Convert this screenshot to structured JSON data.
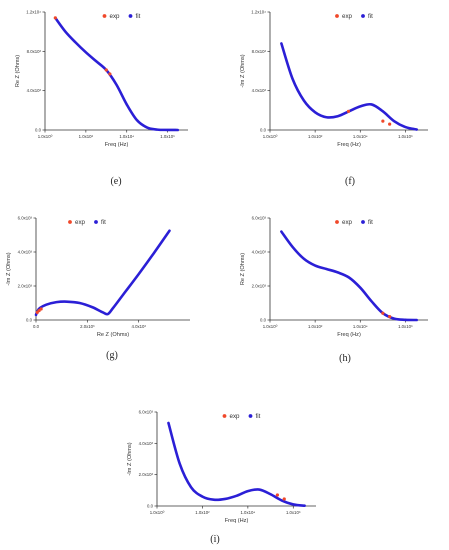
{
  "colors": {
    "exp": "#f0482a",
    "fit": "#2b1fd6",
    "axis": "#333333"
  },
  "chart_data": [
    {
      "id": "e",
      "caption": "(e)",
      "type": "line",
      "title": "",
      "xlabel": "Freq (Hz)",
      "ylabel": "Re Z (Ohms)",
      "xscale": "log",
      "xlim": [
        1,
        10000000
      ],
      "ylim": [
        0,
        12000
      ],
      "xticks": [
        "1.0x10⁰",
        "1.0x10²",
        "1.0x10⁴",
        "1.0x10⁶"
      ],
      "xtick_values": [
        1,
        100,
        10000,
        1000000
      ],
      "yticks": [
        "0.0",
        "4.0x10³",
        "8.0x10³",
        "1.2x10⁴"
      ],
      "ytick_values": [
        0,
        4000,
        8000,
        12000
      ],
      "legend": {
        "position": "top-center",
        "entries": [
          "exp",
          "fit"
        ]
      },
      "series": [
        {
          "name": "fit",
          "x": [
            3.2,
            10,
            31.6,
            100,
            316,
            1000,
            3160,
            10000,
            31600,
            100000,
            316000,
            1000000,
            3160000
          ],
          "y": [
            11400,
            10000,
            8900,
            7900,
            7000,
            6100,
            4600,
            2600,
            1000,
            250,
            40,
            10,
            0
          ]
        },
        {
          "name": "exp",
          "x": [
            3.2,
            1000,
            1500
          ],
          "y": [
            11400,
            6100,
            5700
          ]
        }
      ]
    },
    {
      "id": "f",
      "caption": "(f)",
      "type": "line",
      "title": "",
      "xlabel": "Freq (Hz)",
      "ylabel": "-Im Z (Ohms)",
      "xscale": "log",
      "xlim": [
        1,
        10000000
      ],
      "ylim": [
        0,
        12000
      ],
      "xticks": [
        "1.0x10⁰",
        "1.0x10²",
        "1.0x10⁴",
        "1.0x10⁶"
      ],
      "xtick_values": [
        1,
        100,
        10000,
        1000000
      ],
      "yticks": [
        "0.0",
        "4.0x10³",
        "8.0x10³",
        "1.2x10⁴"
      ],
      "ytick_values": [
        0,
        4000,
        8000,
        12000
      ],
      "legend": {
        "position": "top-center",
        "entries": [
          "exp",
          "fit"
        ]
      },
      "series": [
        {
          "name": "fit",
          "x": [
            3.2,
            10,
            31.6,
            100,
            316,
            1000,
            3160,
            10000,
            31600,
            100000,
            316000,
            1000000,
            3160000
          ],
          "y": [
            8800,
            5200,
            3000,
            1800,
            1300,
            1400,
            1900,
            2400,
            2600,
            1900,
            900,
            300,
            50
          ]
        },
        {
          "name": "exp",
          "x": [
            3000,
            100000,
            200000
          ],
          "y": [
            1900,
            900,
            600
          ]
        }
      ]
    },
    {
      "id": "g",
      "caption": "(g)",
      "type": "line",
      "title": "",
      "xlabel": "Re Z (Ohms)",
      "ylabel": "-Im Z (Ohms)",
      "xscale": "linear",
      "xlim": [
        0,
        6000
      ],
      "ylim": [
        0,
        6000
      ],
      "xticks": [
        "0.0",
        "2.0x10³",
        "4.0x10³"
      ],
      "xtick_values": [
        0,
        2000,
        4000
      ],
      "yticks": [
        "0.0",
        "2.0x10³",
        "4.0x10³",
        "6.0x10³"
      ],
      "ytick_values": [
        0,
        2000,
        4000,
        6000
      ],
      "legend": {
        "position": "top-left",
        "entries": [
          "exp",
          "fit"
        ]
      },
      "series": [
        {
          "name": "fit",
          "x": [
            0,
            50,
            150,
            400,
            800,
            1200,
            1700,
            2200,
            2600,
            2800,
            3000,
            3400,
            4000,
            4600,
            5200
          ],
          "y": [
            300,
            500,
            700,
            900,
            1050,
            1080,
            1000,
            750,
            450,
            350,
            700,
            1500,
            2700,
            3950,
            5250
          ]
        },
        {
          "name": "exp",
          "x": [
            50,
            120,
            200
          ],
          "y": [
            450,
            550,
            650
          ]
        }
      ]
    },
    {
      "id": "h",
      "caption": "(h)",
      "type": "line",
      "title": "",
      "xlabel": "Freq (Hz)",
      "ylabel": "Re Z (Ohms)",
      "xscale": "log",
      "xlim": [
        1,
        10000000
      ],
      "ylim": [
        0,
        6000
      ],
      "xticks": [
        "1.0x10⁰",
        "1.0x10²",
        "1.0x10⁴",
        "1.0x10⁶"
      ],
      "xtick_values": [
        1,
        100,
        10000,
        1000000
      ],
      "yticks": [
        "0.0",
        "2.0x10³",
        "4.0x10³",
        "6.0x10³"
      ],
      "ytick_values": [
        0,
        2000,
        4000,
        6000
      ],
      "legend": {
        "position": "top-center",
        "entries": [
          "exp",
          "fit"
        ]
      },
      "series": [
        {
          "name": "fit",
          "x": [
            3.2,
            10,
            31.6,
            100,
            316,
            1000,
            3160,
            10000,
            31600,
            100000,
            316000,
            1000000,
            3160000
          ],
          "y": [
            5200,
            4300,
            3600,
            3200,
            3000,
            2800,
            2500,
            1900,
            1100,
            400,
            80,
            10,
            0
          ]
        },
        {
          "name": "exp",
          "x": [
            100000,
            200000
          ],
          "y": [
            400,
            200
          ]
        }
      ]
    },
    {
      "id": "i",
      "caption": "(i)",
      "type": "line",
      "title": "",
      "xlabel": "Freq (Hz)",
      "ylabel": "-Im Z (Ohms)",
      "xscale": "log",
      "xlim": [
        1,
        10000000
      ],
      "ylim": [
        0,
        6000
      ],
      "xticks": [
        "1.0x10⁰",
        "1.0x10²",
        "1.0x10⁴",
        "1.0x10⁶"
      ],
      "xtick_values": [
        1,
        100,
        10000,
        1000000
      ],
      "yticks": [
        "0.0",
        "2.0x10³",
        "4.0x10³",
        "6.0x10³"
      ],
      "ytick_values": [
        0,
        2000,
        4000,
        6000
      ],
      "legend": {
        "position": "top-center",
        "entries": [
          "exp",
          "fit"
        ]
      },
      "series": [
        {
          "name": "fit",
          "x": [
            3.2,
            10,
            31.6,
            100,
            316,
            1000,
            3160,
            10000,
            31600,
            100000,
            316000,
            1000000,
            3160000
          ],
          "y": [
            5300,
            2700,
            1200,
            600,
            400,
            450,
            650,
            950,
            1050,
            750,
            350,
            100,
            20
          ]
        },
        {
          "name": "exp",
          "x": [
            200000,
            400000
          ],
          "y": [
            700,
            450
          ]
        }
      ]
    }
  ]
}
